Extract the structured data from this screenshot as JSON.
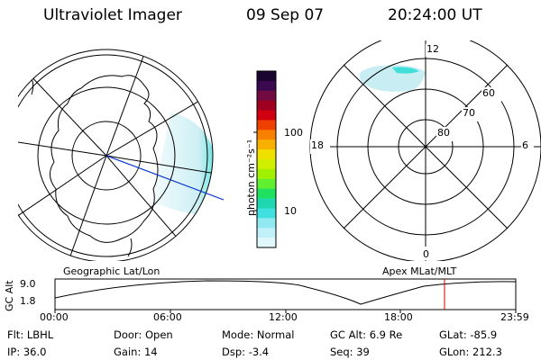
{
  "header": {
    "instrument": "Ultraviolet Imager",
    "date": "09 Sep 07",
    "time": "20:24:00 UT"
  },
  "colorbar": {
    "unit_label": "photon cm⁻²s⁻¹",
    "ticks": [
      "100",
      "10"
    ],
    "colors": [
      "#1a0530",
      "#3a0a50",
      "#700a40",
      "#a00020",
      "#d00010",
      "#f04000",
      "#f88000",
      "#f8b000",
      "#f0e000",
      "#d0f000",
      "#a0f000",
      "#60f030",
      "#20e060",
      "#20d8b0",
      "#40e0e0",
      "#90e8f0",
      "#c0f0f8",
      "#e0f8fc"
    ]
  },
  "left_map": {
    "label": "Geographic Lat/Lon"
  },
  "right_map": {
    "label": "Apex MLat/MLT",
    "mlt_labels": {
      "top": "12",
      "left": "18",
      "right": "6",
      "bottom": "0"
    },
    "lat_labels": [
      "60",
      "70",
      "80"
    ]
  },
  "altitude_plot": {
    "ylabel": "GC Alt",
    "yticks": [
      "9.0",
      "1.8"
    ],
    "xticks": [
      "00:00",
      "06:00",
      "12:00",
      "18:00",
      "23:59"
    ],
    "current_time_color": "#d00000"
  },
  "status": {
    "row1": [
      {
        "label": "Flt:",
        "value": "LBHL"
      },
      {
        "label": "Door:",
        "value": "Open"
      },
      {
        "label": "Mode:",
        "value": "Normal"
      },
      {
        "label": "GC Alt:",
        "value": "6.9 Re"
      },
      {
        "label": "GLat:",
        "value": "-85.9"
      }
    ],
    "row2": [
      {
        "label": "IP:",
        "value": "36.0"
      },
      {
        "label": "Gain:",
        "value": "14"
      },
      {
        "label": "Dsp:",
        "value": "-3.4"
      },
      {
        "label": "Seq:",
        "value": "39"
      },
      {
        "label": "GLon:",
        "value": "212.3"
      }
    ]
  }
}
